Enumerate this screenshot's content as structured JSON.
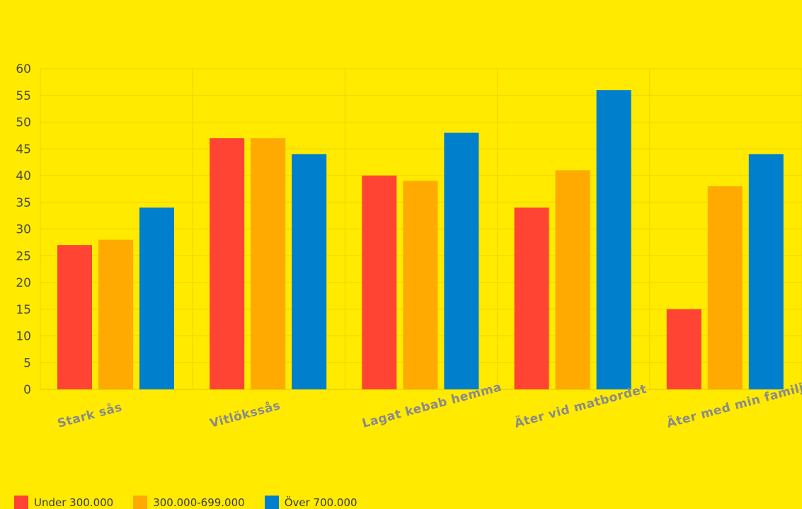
{
  "chart_data": {
    "type": "bar",
    "title": "",
    "xlabel": "",
    "ylabel": "",
    "categories": [
      "Stark sås",
      "Vitlökssås",
      "Lagat kebab hemma",
      "Äter vid matbordet",
      "Äter med min familj"
    ],
    "series": [
      {
        "name": "Under 300.000",
        "color": "#ff4433",
        "values": [
          27,
          47,
          40,
          34,
          15
        ]
      },
      {
        "name": "300.000-699.000",
        "color": "#ffaa00",
        "values": [
          28,
          47,
          39,
          41,
          38
        ]
      },
      {
        "name": "Över 700.000",
        "color": "#0080cc",
        "values": [
          34,
          44,
          48,
          56,
          44
        ]
      }
    ],
    "ylim": [
      0,
      60
    ],
    "yticks": [
      "0",
      "5",
      "10",
      "15",
      "20",
      "25",
      "30",
      "35",
      "40",
      "45",
      "50",
      "55",
      "60"
    ],
    "grid": true,
    "legend_position": "bottom-left",
    "background_color": "#ffea00",
    "text_color": "#4a4a4a"
  }
}
